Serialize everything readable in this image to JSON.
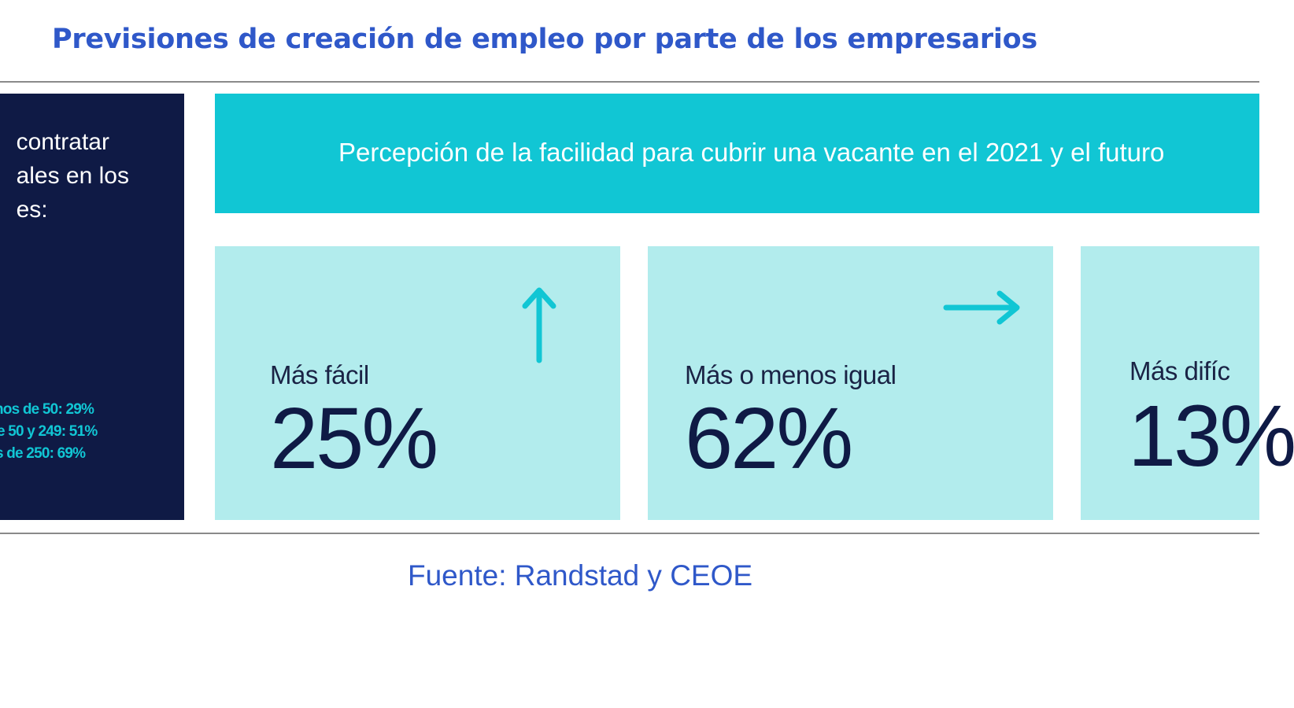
{
  "title": "Previsiones de creación de empleo por parte de los empresarios",
  "left_panel": {
    "lines": [
      "contratar",
      "ales en los",
      "es:"
    ],
    "stats": [
      "nos de 50: 29%",
      "e 50 y 249: 51%",
      "s de 250: 69%"
    ]
  },
  "banner": {
    "text": "Percepción de la facilidad para cubrir una vacante en el 2021 y el futuro"
  },
  "cards": [
    {
      "label": "Más fácil",
      "value": "25%",
      "icon": "arrow-up-icon"
    },
    {
      "label": "Más o menos igual",
      "value": "62%",
      "icon": "arrow-right-icon"
    },
    {
      "label": "Más difíc",
      "value": "13%",
      "icon": ""
    }
  ],
  "source": "Fuente: Randstad y CEOE",
  "colors": {
    "title": "#2f58c9",
    "dark_navy": "#0f1a45",
    "teal": "#11c6d4",
    "light_teal": "#b2eced"
  }
}
